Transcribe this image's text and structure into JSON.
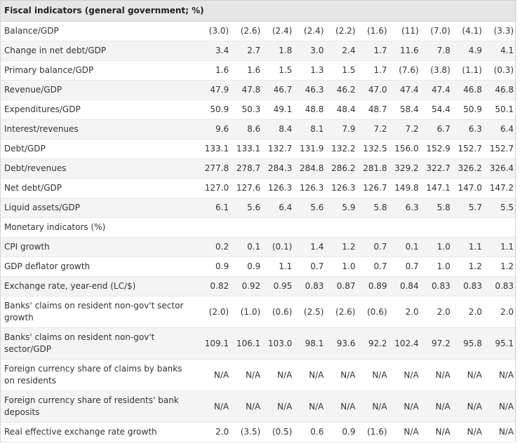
{
  "title": "Fiscal indicators (general government; %)",
  "rows": [
    {
      "label": "Balance/GDP",
      "values": [
        "(3.0)",
        "(2.6)",
        "(2.4)",
        "(2.4)",
        "(2.2)",
        "(1.6)",
        "(11)",
        "(7.0)",
        "(4.1)",
        "(3.3)"
      ]
    },
    {
      "label": "Change in net debt/GDP",
      "values": [
        "3.4",
        "2.7",
        "1.8",
        "3.0",
        "2.4",
        "1.7",
        "11.6",
        "7.8",
        "4.9",
        "4.1"
      ]
    },
    {
      "label": "Primary balance/GDP",
      "values": [
        "1.6",
        "1.6",
        "1.5",
        "1.3",
        "1.5",
        "1.7",
        "(7.6)",
        "(3.8)",
        "(1.1)",
        "(0.3)"
      ]
    },
    {
      "label": "Revenue/GDP",
      "values": [
        "47.9",
        "47.8",
        "46.7",
        "46.3",
        "46.2",
        "47.0",
        "47.4",
        "47.4",
        "46.8",
        "46.8"
      ]
    },
    {
      "label": "Expenditures/GDP",
      "values": [
        "50.9",
        "50.3",
        "49.1",
        "48.8",
        "48.4",
        "48.7",
        "58.4",
        "54.4",
        "50.9",
        "50.1"
      ]
    },
    {
      "label": "Interest/revenues",
      "values": [
        "9.6",
        "8.6",
        "8.4",
        "8.1",
        "7.9",
        "7.2",
        "7.2",
        "6.7",
        "6.3",
        "6.4"
      ]
    },
    {
      "label": "Debt/GDP",
      "values": [
        "133.1",
        "133.1",
        "132.7",
        "131.9",
        "132.2",
        "132.5",
        "156.0",
        "152.9",
        "152.7",
        "152.7"
      ]
    },
    {
      "label": "Debt/revenues",
      "values": [
        "277.8",
        "278.7",
        "284.3",
        "284.8",
        "286.2",
        "281.8",
        "329.2",
        "322.7",
        "326.2",
        "326.4"
      ]
    },
    {
      "label": "Net debt/GDP",
      "values": [
        "127.0",
        "127.6",
        "126.3",
        "126.3",
        "126.3",
        "126.7",
        "149.8",
        "147.1",
        "147.0",
        "147.2"
      ]
    },
    {
      "label": "Liquid assets/GDP",
      "values": [
        "6.1",
        "5.6",
        "6.4",
        "5.6",
        "5.9",
        "5.8",
        "6.3",
        "5.8",
        "5.7",
        "5.5"
      ]
    }
  ],
  "section2": {
    "title": "Monetary indicators (%)",
    "rows": [
      {
        "label": "CPI growth",
        "values": [
          "0.2",
          "0.1",
          "(0.1)",
          "1.4",
          "1.2",
          "0.7",
          "0.1",
          "1.0",
          "1.1",
          "1.1"
        ]
      },
      {
        "label": "GDP deflator growth",
        "values": [
          "0.9",
          "0.9",
          "1.1",
          "0.7",
          "1.0",
          "0.7",
          "0.7",
          "1.0",
          "1.2",
          "1.2"
        ]
      },
      {
        "label": "Exchange rate, year-end (LC/$)",
        "values": [
          "0.82",
          "0.92",
          "0.95",
          "0.83",
          "0.87",
          "0.89",
          "0.84",
          "0.83",
          "0.83",
          "0.83"
        ]
      },
      {
        "label": "Banks' claims on resident non-gov't sector growth",
        "values": [
          "(2.0)",
          "(1.0)",
          "(0.6)",
          "(2.5)",
          "(2.6)",
          "(0.6)",
          "2.0",
          "2.0",
          "2.0",
          "2.0"
        ]
      },
      {
        "label": "Banks' claims on resident non-gov't sector/GDP",
        "values": [
          "109.1",
          "106.1",
          "103.0",
          "98.1",
          "93.6",
          "92.2",
          "102.4",
          "97.2",
          "95.8",
          "95.1"
        ]
      },
      {
        "label": "Foreign currency share of claims by banks on residents",
        "values": [
          "N/A",
          "N/A",
          "N/A",
          "N/A",
          "N/A",
          "N/A",
          "N/A",
          "N/A",
          "N/A",
          "N/A"
        ]
      },
      {
        "label": "Foreign currency share of residents' bank deposits",
        "values": [
          "N/A",
          "N/A",
          "N/A",
          "N/A",
          "N/A",
          "N/A",
          "N/A",
          "N/A",
          "N/A",
          "N/A"
        ]
      },
      {
        "label": "Real effective exchange rate growth",
        "values": [
          "2.0",
          "(3.5)",
          "(0.5)",
          "0.6",
          "0.9",
          "(1.6)",
          "N/A",
          "N/A",
          "N/A",
          "N/A"
        ]
      }
    ]
  }
}
